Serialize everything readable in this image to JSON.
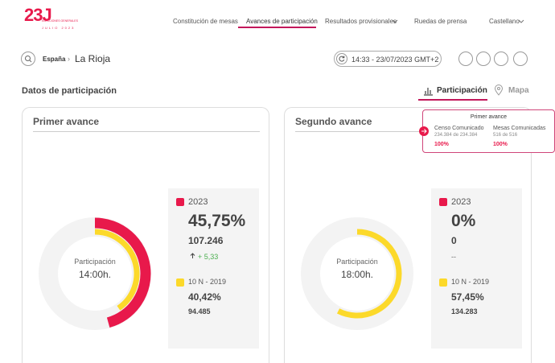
{
  "header": {
    "logo": {
      "mark": "23J",
      "line1": "ELECCIONES GENERALES",
      "line2": "JULIO 2023"
    },
    "nav": [
      "Constitución de mesas",
      "Avances de participación",
      "Resultados provisionales",
      "Ruedas de prensa"
    ],
    "language": "Castellano"
  },
  "breadcrumb": [
    "España",
    "La Rioja"
  ],
  "timestamp": "14:33 - 23/07/2023 GMT+2",
  "section": {
    "title": "Datos de participación",
    "tabs": [
      "Participación",
      "Mapa"
    ]
  },
  "cards": [
    {
      "title": "Primer avance",
      "center_label": "Participación",
      "time": "14:00h.",
      "current": {
        "label": "2023",
        "percent": "45,75%",
        "votes": "107.246",
        "change": "+ 5,33"
      },
      "previous": {
        "label": "10 N - 2019",
        "percent": "40,42%",
        "votes": "94.485"
      }
    },
    {
      "title": "Segundo avance",
      "center_label": "Participación",
      "time": "18:00h.",
      "current": {
        "label": "2023",
        "percent": "0%",
        "votes": "0",
        "change": "--"
      },
      "previous": {
        "label": "10 N - 2019",
        "percent": "57,45%",
        "votes": "134.283"
      }
    }
  ],
  "tooltip": {
    "title": "Primer avance",
    "items": [
      {
        "label": "Censo Comunicado",
        "detail": "234.384 de 234.384",
        "percent": "100%"
      },
      {
        "label": "Mesas Comunicadas",
        "detail": "516 de 516",
        "percent": "100%"
      }
    ]
  }
}
